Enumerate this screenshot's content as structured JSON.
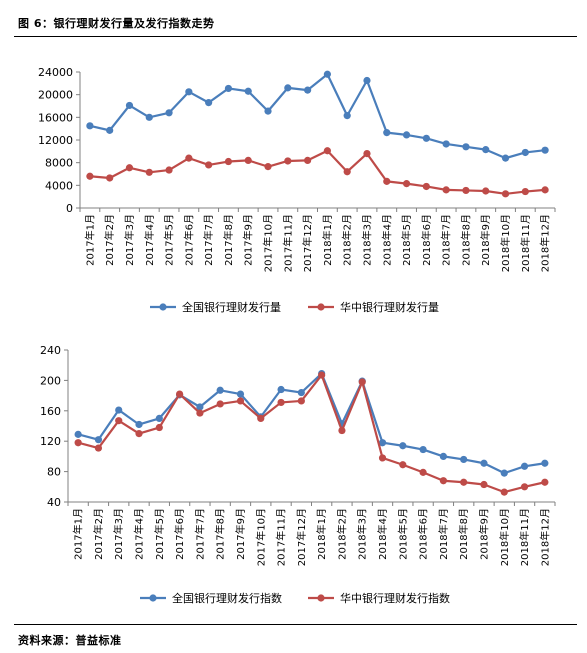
{
  "figure_title": "图 6：银行理财发行量及发行指数走势",
  "source_note": "资料来源：普益标准",
  "colors": {
    "blue": "#4a7ebb",
    "red": "#be4b48",
    "axis": "#808080"
  },
  "chart_data": [
    {
      "type": "line",
      "title": "",
      "xlabel": "",
      "ylabel": "",
      "categories": [
        "2017年1月",
        "2017年2月",
        "2017年3月",
        "2017年4月",
        "2017年5月",
        "2017年6月",
        "2017年7月",
        "2017年8月",
        "2017年9月",
        "2017年10月",
        "2017年11月",
        "2017年12月",
        "2018年1月",
        "2018年2月",
        "2018年3月",
        "2018年4月",
        "2018年5月",
        "2018年6月",
        "2018年7月",
        "2018年8月",
        "2018年9月",
        "2018年10月",
        "2018年11月",
        "2018年12月"
      ],
      "ylim": [
        0,
        24000
      ],
      "yticks": [
        0,
        4000,
        8000,
        12000,
        16000,
        20000,
        24000
      ],
      "grid": false,
      "legend_position": "bottom",
      "series": [
        {
          "name": "全国银行理财发行量",
          "color": "#4a7ebb",
          "values": [
            14500,
            13700,
            18100,
            16000,
            16800,
            20500,
            18600,
            21100,
            20600,
            17100,
            21200,
            20800,
            23600,
            16300,
            22500,
            13300,
            12900,
            12300,
            11300,
            10800,
            10300,
            8800,
            9800,
            10200
          ]
        },
        {
          "name": "华中银行理财发行量",
          "color": "#be4b48",
          "values": [
            5600,
            5300,
            7100,
            6300,
            6700,
            8800,
            7600,
            8200,
            8400,
            7300,
            8300,
            8400,
            10100,
            6400,
            9600,
            4700,
            4300,
            3800,
            3200,
            3100,
            3000,
            2500,
            2900,
            3200
          ]
        }
      ]
    },
    {
      "type": "line",
      "title": "",
      "xlabel": "",
      "ylabel": "",
      "categories": [
        "2017年1月",
        "2017年2月",
        "2017年3月",
        "2017年4月",
        "2017年5月",
        "2017年6月",
        "2017年7月",
        "2017年8月",
        "2017年9月",
        "2017年10月",
        "2017年11月",
        "2017年12月",
        "2018年1月",
        "2018年2月",
        "2018年3月",
        "2018年4月",
        "2018年5月",
        "2018年6月",
        "2018年7月",
        "2018年8月",
        "2018年9月",
        "2018年10月",
        "2018年11月",
        "2018年12月"
      ],
      "ylim": [
        40,
        240
      ],
      "yticks": [
        40,
        80,
        120,
        160,
        200,
        240
      ],
      "grid": false,
      "legend_position": "bottom",
      "series": [
        {
          "name": "全国银行理财发行指数",
          "color": "#4a7ebb",
          "values": [
            129,
            122,
            161,
            142,
            150,
            181,
            165,
            187,
            182,
            152,
            188,
            184,
            209,
            143,
            199,
            118,
            114,
            109,
            100,
            96,
            91,
            78,
            87,
            91
          ]
        },
        {
          "name": "华中银行理财发行指数",
          "color": "#be4b48",
          "values": [
            118,
            111,
            147,
            130,
            138,
            182,
            157,
            169,
            173,
            150,
            171,
            173,
            207,
            134,
            198,
            98,
            89,
            79,
            68,
            66,
            63,
            53,
            60,
            66
          ]
        }
      ]
    }
  ]
}
